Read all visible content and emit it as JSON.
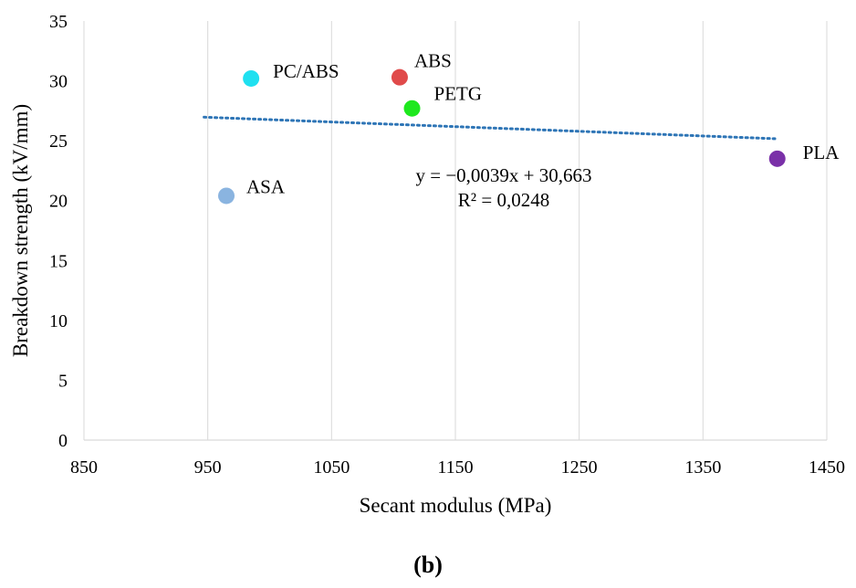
{
  "panel_label": "(b)",
  "colors": {
    "grid": "#d9d9d9",
    "trendline": "#2e75b6",
    "text": "#000000"
  },
  "chart_data": {
    "type": "scatter",
    "xlabel": "Secant modulus (MPa)",
    "ylabel": "Breakdown strength (kV/mm)",
    "xlim": [
      850,
      1450
    ],
    "ylim": [
      0,
      35
    ],
    "xticks": [
      850,
      950,
      1050,
      1150,
      1250,
      1350,
      1450
    ],
    "yticks": [
      0,
      5,
      10,
      15,
      20,
      25,
      30,
      35
    ],
    "grid": "vertical",
    "points": [
      {
        "label": "PC/ABS",
        "x": 985,
        "y": 30.2,
        "color": "#1fe0f0"
      },
      {
        "label": "ABS",
        "x": 1105,
        "y": 30.3,
        "color": "#e04a4a"
      },
      {
        "label": "PETG",
        "x": 1115,
        "y": 27.7,
        "color": "#1ee81e"
      },
      {
        "label": "ASA",
        "x": 965,
        "y": 20.4,
        "color": "#8ab4e0"
      },
      {
        "label": "PLA",
        "x": 1410,
        "y": 23.5,
        "color": "#7a30a8"
      }
    ],
    "trendline": {
      "slope": -0.0039,
      "intercept": 30.663,
      "x_range": [
        965,
        1410
      ],
      "style": "dotted",
      "equation": "y = −0,0039x + 30,663",
      "r_squared": "R² = 0,0248"
    }
  }
}
